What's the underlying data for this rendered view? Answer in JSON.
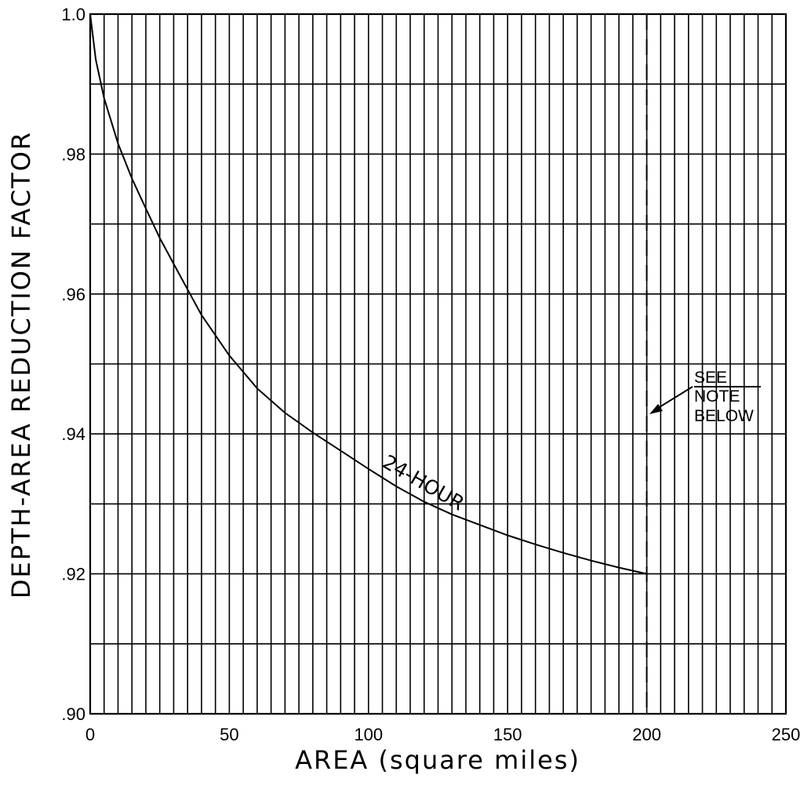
{
  "chart_data": {
    "type": "line",
    "xlabel": "AREA (square miles)",
    "ylabel": "DEPTH-AREA REDUCTION FACTOR",
    "xlim": [
      0,
      250
    ],
    "ylim": [
      0.9,
      1.0
    ],
    "x_tick_values": [
      0,
      50,
      100,
      150,
      200,
      250
    ],
    "x_tick_labels": [
      "0",
      "50",
      "100",
      "150",
      "200",
      "250"
    ],
    "y_tick_values": [
      0.9,
      0.92,
      0.94,
      0.96,
      0.98,
      1.0
    ],
    "y_tick_labels": [
      ".90",
      ".92",
      ".94",
      ".96",
      ".98",
      "1.0"
    ],
    "x_grid_step": 5,
    "y_grid_step": 0.01,
    "grid": true,
    "series": [
      {
        "name": "24-HOUR",
        "x": [
          0,
          2,
          5,
          10,
          15,
          20,
          25,
          30,
          40,
          50,
          60,
          70,
          80,
          90,
          100,
          110,
          120,
          130,
          140,
          150,
          160,
          170,
          180,
          190,
          200
        ],
        "y": [
          1.0,
          0.9935,
          0.988,
          0.9815,
          0.9765,
          0.9722,
          0.968,
          0.9643,
          0.957,
          0.9512,
          0.9465,
          0.943,
          0.9402,
          0.9376,
          0.935,
          0.9325,
          0.9303,
          0.9285,
          0.927,
          0.9255,
          0.9242,
          0.923,
          0.9219,
          0.9209,
          0.92
        ]
      }
    ],
    "reference_line": {
      "x": 200,
      "style": "dashed"
    },
    "annotation": {
      "lines": [
        "SEE",
        "NOTE",
        "BELOW"
      ],
      "points_to_x": 200
    }
  }
}
